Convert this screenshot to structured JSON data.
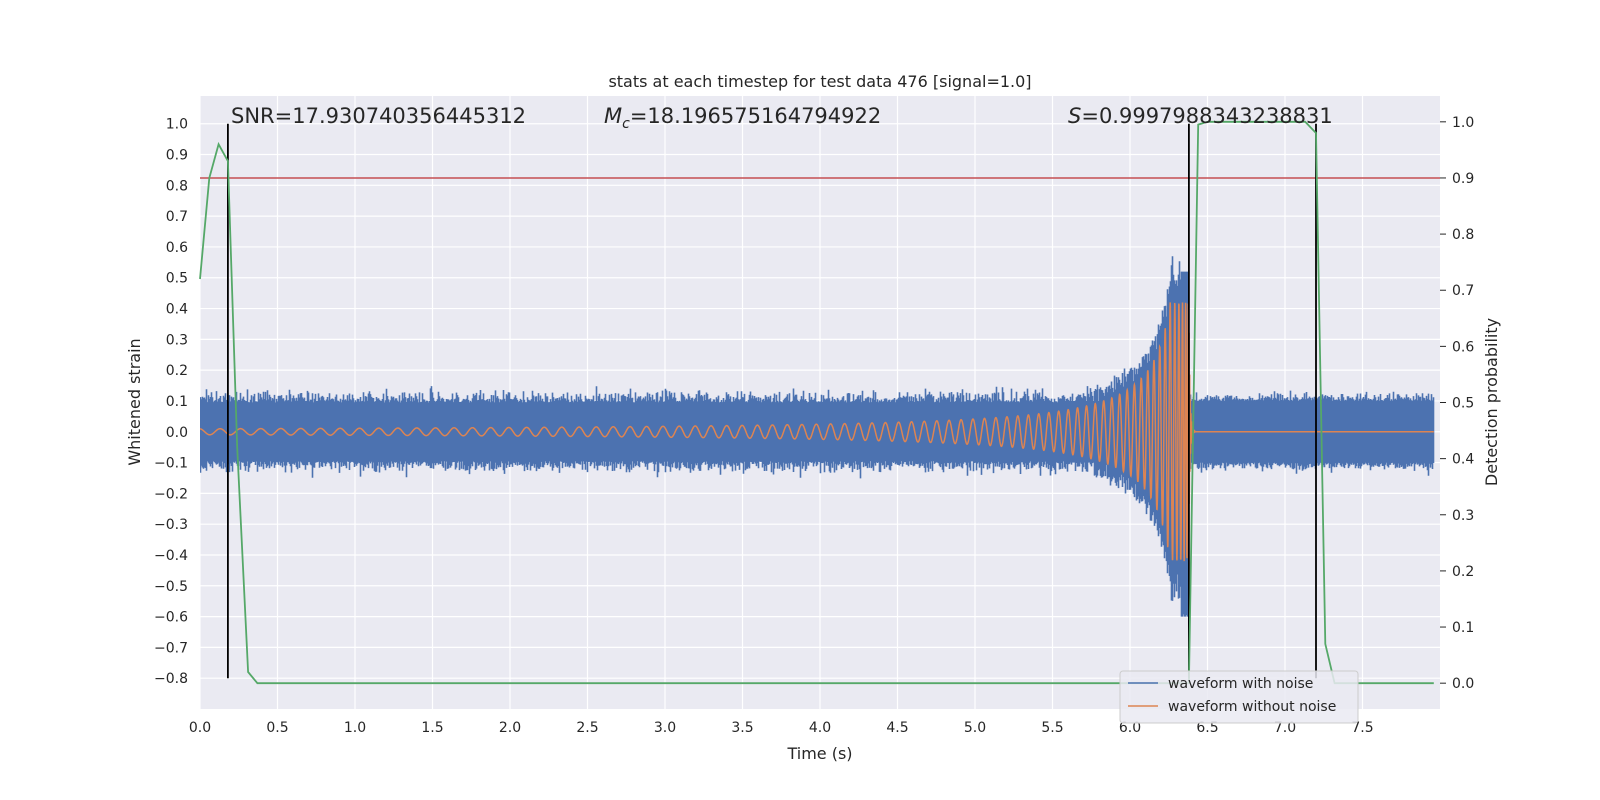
{
  "chart_data": {
    "type": "line",
    "title": "stats at each timestep for test data 476 [signal=1.0]",
    "xlabel": "Time (s)",
    "ylabel": "Whitened strain",
    "y2label": "Detection probability",
    "xlim": [
      0.0,
      8.0
    ],
    "ylim": [
      -0.9,
      1.09
    ],
    "y2lim": [
      -0.046,
      1.046
    ],
    "xticks": [
      "0.0",
      "0.5",
      "1.0",
      "1.5",
      "2.0",
      "2.5",
      "3.0",
      "3.5",
      "4.0",
      "4.5",
      "5.0",
      "5.5",
      "6.0",
      "6.5",
      "7.0",
      "7.5"
    ],
    "yticks": [
      "−0.8",
      "−0.7",
      "−0.6",
      "−0.5",
      "−0.4",
      "−0.3",
      "−0.2",
      "−0.1",
      "0.0",
      "0.1",
      "0.2",
      "0.3",
      "0.4",
      "0.5",
      "0.6",
      "0.7",
      "0.8",
      "0.9",
      "1.0"
    ],
    "y2ticks": [
      "0.0",
      "0.1",
      "0.2",
      "0.3",
      "0.4",
      "0.5",
      "0.6",
      "0.7",
      "0.8",
      "0.9",
      "1.0"
    ],
    "grid": true,
    "legend_position": "bottom-right",
    "annotations": {
      "snr": "SNR=17.930740356445312",
      "mc_symbol": "M",
      "mc_sub": "c",
      "mc_value": "=18.196575164794922",
      "s_symbol": "S",
      "s_value": "=0.9997988343238831"
    },
    "threshold": {
      "value": 0.9,
      "axis": "y2",
      "color": "#c44e52"
    },
    "vertical_lines": [
      0.18,
      6.38,
      7.2
    ],
    "vertical_line_range": [
      -0.8,
      1.0
    ],
    "series": [
      {
        "name": "waveform with noise",
        "color": "#4c72b0",
        "axis": "y",
        "description_points": {
          "noise_band": 0.12,
          "merger_time": 6.38,
          "peak_upper": 0.52,
          "peak_lower": -0.6,
          "post_merger_band": 0.12
        }
      },
      {
        "name": "waveform without noise",
        "color": "#dd8452",
        "axis": "y",
        "description_points": {
          "early_amplitude": 0.01,
          "merger_time": 6.38,
          "peak_amplitude": 0.42,
          "post_merger_value": 0.0
        }
      },
      {
        "name": "",
        "color": "#55a868",
        "axis": "y2",
        "x": [
          0.0,
          0.06,
          0.12,
          0.18,
          0.24,
          0.31,
          0.37,
          0.5,
          1.0,
          2.0,
          3.0,
          4.0,
          5.0,
          6.0,
          6.3,
          6.38,
          6.44,
          6.5,
          7.0,
          7.13,
          7.2,
          7.26,
          7.32,
          7.4,
          7.5,
          7.96
        ],
        "values": [
          0.72,
          0.9,
          0.96,
          0.93,
          0.42,
          0.02,
          0.0,
          0.0,
          0.0,
          0.0,
          0.0,
          0.0,
          0.0,
          0.0,
          0.0,
          0.0,
          0.995,
          1.0,
          1.0,
          1.0,
          0.98,
          0.07,
          0.0,
          0.0,
          0.0,
          0.0
        ]
      }
    ]
  },
  "legend": {
    "items": [
      {
        "label": "waveform with noise",
        "color": "#4c72b0"
      },
      {
        "label": "waveform without noise",
        "color": "#dd8452"
      }
    ]
  },
  "colors": {
    "plot_background": "#eaeaf2",
    "grid": "#ffffff",
    "vline": "#000000"
  }
}
